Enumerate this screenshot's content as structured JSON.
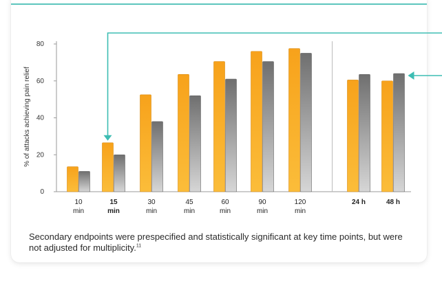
{
  "chart_data": {
    "type": "bar",
    "ylabel": "% of attacks achieving pain relief",
    "ylim": [
      0,
      80
    ],
    "yticks": [
      0,
      20,
      40,
      60,
      80
    ],
    "categories": [
      {
        "line1": "10",
        "line2": "min",
        "bold": false
      },
      {
        "line1": "15",
        "line2": "min",
        "bold": true
      },
      {
        "line1": "30",
        "line2": "min",
        "bold": false
      },
      {
        "line1": "45",
        "line2": "min",
        "bold": false
      },
      {
        "line1": "60",
        "line2": "min",
        "bold": false
      },
      {
        "line1": "90",
        "line2": "min",
        "bold": false
      },
      {
        "line1": "120",
        "line2": "min",
        "bold": false
      },
      {
        "line1": "24 h",
        "line2": "",
        "bold": true
      },
      {
        "line1": "48 h",
        "line2": "",
        "bold": true
      }
    ],
    "series": [
      {
        "color": "#f7a21b",
        "values": [
          13.5,
          26.5,
          52.5,
          63.5,
          70.5,
          76,
          77.5,
          60.5,
          60
        ]
      },
      {
        "color": "#8a8a8a",
        "values": [
          11,
          20,
          38,
          52,
          61,
          70.5,
          75,
          63.5,
          64
        ]
      }
    ],
    "grid": false,
    "separator_after_index": 6,
    "callouts": [
      {
        "target_category": 1,
        "target_series": 0,
        "direction": "down",
        "color": "#3dbdb3"
      },
      {
        "target_category": 8,
        "target_series": 1,
        "direction": "left",
        "color": "#3dbdb3"
      }
    ]
  },
  "footnote": {
    "text": "Secondary endpoints were prespecified and statistically significant at key time points, but were not adjusted for multiplicity.",
    "ref": "11"
  }
}
